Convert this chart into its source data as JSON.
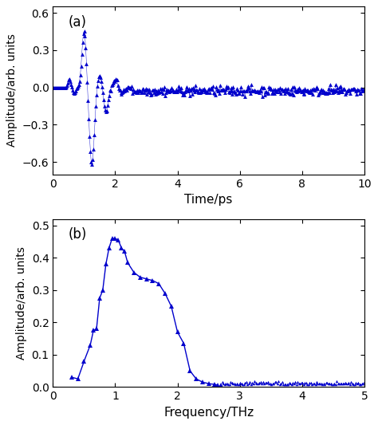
{
  "panel_a": {
    "label": "(a)",
    "xlabel": "Time/ps",
    "ylabel": "Amplitude/arb. units",
    "xlim": [
      0,
      10
    ],
    "ylim": [
      -0.7,
      0.65
    ],
    "yticks": [
      -0.6,
      -0.3,
      0,
      0.3,
      0.6
    ],
    "xticks": [
      0,
      2,
      4,
      6,
      8,
      10
    ],
    "color": "#0000CC"
  },
  "panel_b": {
    "label": "(b)",
    "xlabel": "Frequency/THz",
    "ylabel": "Amplitude/arb. units",
    "xlim": [
      0,
      5
    ],
    "ylim": [
      0,
      0.52
    ],
    "yticks": [
      0.0,
      0.1,
      0.2,
      0.3,
      0.4,
      0.5
    ],
    "xticks": [
      0,
      1,
      2,
      3,
      4,
      5
    ],
    "color": "#0000CC"
  },
  "panel_b_xdata": [
    0.3,
    0.4,
    0.5,
    0.6,
    0.65,
    0.7,
    0.75,
    0.8,
    0.85,
    0.9,
    0.95,
    1.0,
    1.05,
    1.1,
    1.15,
    1.2,
    1.3,
    1.4,
    1.5,
    1.6,
    1.7,
    1.8,
    1.9,
    2.0,
    2.1,
    2.2,
    2.3,
    2.4,
    2.5,
    2.6,
    2.65,
    2.7
  ],
  "panel_b_ydata": [
    0.03,
    0.025,
    0.08,
    0.13,
    0.175,
    0.18,
    0.275,
    0.3,
    0.38,
    0.43,
    0.46,
    0.46,
    0.455,
    0.43,
    0.42,
    0.385,
    0.355,
    0.34,
    0.335,
    0.33,
    0.32,
    0.29,
    0.25,
    0.17,
    0.135,
    0.05,
    0.025,
    0.015,
    0.01,
    0.008,
    0.005,
    0.005
  ],
  "background_color": "#ffffff",
  "marker": "^",
  "markersize": 5,
  "linewidth": 1.0
}
